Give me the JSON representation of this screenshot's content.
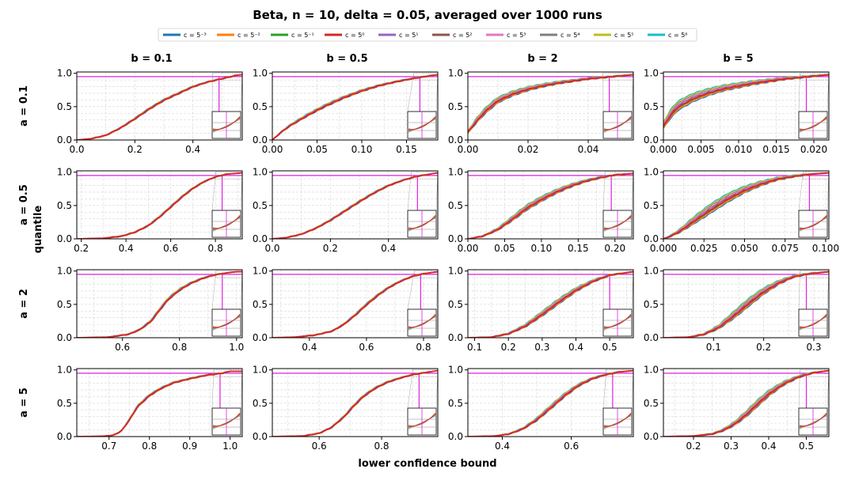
{
  "chart_data": {
    "type": "line",
    "title": "Beta,  n = 10,  delta = 0.05, averaged over 1000 runs",
    "xlabel": "lower confidence bound",
    "ylabel": "quantile",
    "reference_quantile": 0.95,
    "legend": {
      "placement": "top-center",
      "entries": [
        {
          "label": "c = 5⁻³",
          "color": "#1f77b4"
        },
        {
          "label": "c = 5⁻²",
          "color": "#ff7f0e"
        },
        {
          "label": "c = 5⁻¹",
          "color": "#2ca02c"
        },
        {
          "label": "c = 5⁰",
          "color": "#d62728"
        },
        {
          "label": "c = 5¹",
          "color": "#9467bd"
        },
        {
          "label": "c = 5²",
          "color": "#8c564b"
        },
        {
          "label": "c = 5³",
          "color": "#e377c2"
        },
        {
          "label": "c = 5⁴",
          "color": "#7f7f7f"
        },
        {
          "label": "c = 5⁵",
          "color": "#bcbd22"
        },
        {
          "label": "c = 5⁶",
          "color": "#17becf"
        }
      ]
    },
    "columns": [
      {
        "label": "b = 0.1"
      },
      {
        "label": "b = 0.5"
      },
      {
        "label": "b = 2"
      },
      {
        "label": "b = 5"
      }
    ],
    "rows": [
      {
        "label": "a = 0.1"
      },
      {
        "label": "a = 0.5"
      },
      {
        "label": "a = 2"
      },
      {
        "label": "a = 5"
      }
    ],
    "y_ticks": [
      {
        "v": 0.0,
        "label": "0.0"
      },
      {
        "v": 0.5,
        "label": "0.5"
      },
      {
        "v": 1.0,
        "label": "1.0"
      }
    ],
    "panels": [
      {
        "row": 0,
        "col": 0,
        "xlim": [
          0.0,
          0.57
        ],
        "ylim": [
          0,
          1.02
        ],
        "marker_x": 0.49,
        "xticks": [
          {
            "v": 0.0,
            "label": "0.0"
          },
          {
            "v": 0.2,
            "label": "0.2"
          },
          {
            "v": 0.4,
            "label": "0.4"
          }
        ],
        "curve": {
          "x": [
            0.0,
            0.05,
            0.1,
            0.15,
            0.2,
            0.25,
            0.3,
            0.35,
            0.4,
            0.45,
            0.5,
            0.55,
            0.57
          ],
          "y": [
            0,
            0.02,
            0.07,
            0.18,
            0.32,
            0.47,
            0.6,
            0.7,
            0.8,
            0.87,
            0.92,
            0.97,
            0.98
          ]
        },
        "spread": 0.012
      },
      {
        "row": 0,
        "col": 1,
        "xlim": [
          0.0,
          0.185
        ],
        "ylim": [
          0,
          1.02
        ],
        "marker_x": 0.165,
        "xticks": [
          {
            "v": 0.0,
            "label": "0.00"
          },
          {
            "v": 0.05,
            "label": "0.05"
          },
          {
            "v": 0.1,
            "label": "0.10"
          },
          {
            "v": 0.15,
            "label": "0.15"
          }
        ],
        "curve": {
          "x": [
            0.0,
            0.01,
            0.02,
            0.04,
            0.06,
            0.08,
            0.1,
            0.12,
            0.14,
            0.16,
            0.185
          ],
          "y": [
            0,
            0.12,
            0.22,
            0.38,
            0.52,
            0.64,
            0.74,
            0.82,
            0.88,
            0.93,
            0.98
          ]
        },
        "spread": 0.018
      },
      {
        "row": 0,
        "col": 2,
        "xlim": [
          0.0,
          0.055
        ],
        "ylim": [
          0,
          1.02
        ],
        "marker_x": 0.047,
        "xticks": [
          {
            "v": 0.0,
            "label": "0.00"
          },
          {
            "v": 0.02,
            "label": "0.02"
          },
          {
            "v": 0.04,
            "label": "0.04"
          }
        ],
        "curve": {
          "x": [
            0.0,
            0.003,
            0.006,
            0.01,
            0.015,
            0.02,
            0.025,
            0.03,
            0.035,
            0.04,
            0.045,
            0.05,
            0.055
          ],
          "y": [
            0.12,
            0.3,
            0.45,
            0.6,
            0.7,
            0.77,
            0.82,
            0.86,
            0.89,
            0.92,
            0.94,
            0.96,
            0.98
          ]
        },
        "spread": 0.045
      },
      {
        "row": 0,
        "col": 3,
        "xlim": [
          0.0,
          0.022
        ],
        "ylim": [
          0,
          1.02
        ],
        "marker_x": 0.019,
        "xticks": [
          {
            "v": 0.0,
            "label": "0.000"
          },
          {
            "v": 0.005,
            "label": "0.005"
          },
          {
            "v": 0.01,
            "label": "0.010"
          },
          {
            "v": 0.015,
            "label": "0.015"
          },
          {
            "v": 0.02,
            "label": "0.020"
          }
        ],
        "curve": {
          "x": [
            0.0,
            0.001,
            0.002,
            0.004,
            0.006,
            0.008,
            0.01,
            0.012,
            0.014,
            0.016,
            0.018,
            0.02,
            0.022
          ],
          "y": [
            0.22,
            0.4,
            0.52,
            0.64,
            0.72,
            0.78,
            0.82,
            0.86,
            0.89,
            0.92,
            0.94,
            0.96,
            0.98
          ]
        },
        "spread": 0.07
      },
      {
        "row": 1,
        "col": 0,
        "xlim": [
          0.18,
          0.92
        ],
        "ylim": [
          0,
          1.02
        ],
        "marker_x": 0.83,
        "xticks": [
          {
            "v": 0.2,
            "label": "0.2"
          },
          {
            "v": 0.4,
            "label": "0.4"
          },
          {
            "v": 0.6,
            "label": "0.6"
          },
          {
            "v": 0.8,
            "label": "0.8"
          }
        ],
        "curve": {
          "x": [
            0.18,
            0.3,
            0.38,
            0.44,
            0.5,
            0.55,
            0.6,
            0.65,
            0.7,
            0.75,
            0.8,
            0.85,
            0.92
          ],
          "y": [
            0,
            0.01,
            0.04,
            0.1,
            0.2,
            0.33,
            0.48,
            0.63,
            0.76,
            0.86,
            0.93,
            0.97,
            0.99
          ]
        },
        "spread": 0.012
      },
      {
        "row": 1,
        "col": 1,
        "xlim": [
          0.0,
          0.57
        ],
        "ylim": [
          0,
          1.02
        ],
        "marker_x": 0.5,
        "xticks": [
          {
            "v": 0.0,
            "label": "0.0"
          },
          {
            "v": 0.2,
            "label": "0.2"
          },
          {
            "v": 0.4,
            "label": "0.4"
          }
        ],
        "curve": {
          "x": [
            0.0,
            0.05,
            0.1,
            0.15,
            0.2,
            0.25,
            0.3,
            0.35,
            0.4,
            0.45,
            0.5,
            0.57
          ],
          "y": [
            0,
            0.02,
            0.07,
            0.16,
            0.28,
            0.42,
            0.56,
            0.69,
            0.8,
            0.88,
            0.94,
            0.99
          ]
        },
        "spread": 0.012
      },
      {
        "row": 1,
        "col": 2,
        "xlim": [
          0.0,
          0.225
        ],
        "ylim": [
          0,
          1.02
        ],
        "marker_x": 0.195,
        "xticks": [
          {
            "v": 0.0,
            "label": "0.00"
          },
          {
            "v": 0.05,
            "label": "0.05"
          },
          {
            "v": 0.1,
            "label": "0.10"
          },
          {
            "v": 0.15,
            "label": "0.15"
          },
          {
            "v": 0.2,
            "label": "0.20"
          }
        ],
        "curve": {
          "x": [
            0.0,
            0.02,
            0.04,
            0.06,
            0.08,
            0.1,
            0.12,
            0.14,
            0.16,
            0.18,
            0.2,
            0.225
          ],
          "y": [
            0,
            0.04,
            0.14,
            0.3,
            0.47,
            0.6,
            0.71,
            0.8,
            0.87,
            0.92,
            0.96,
            0.98
          ]
        },
        "spread": 0.04
      },
      {
        "row": 1,
        "col": 3,
        "xlim": [
          0.0,
          0.102
        ],
        "ylim": [
          0,
          1.02
        ],
        "marker_x": 0.09,
        "xticks": [
          {
            "v": 0.0,
            "label": "0.000"
          },
          {
            "v": 0.025,
            "label": "0.025"
          },
          {
            "v": 0.05,
            "label": "0.050"
          },
          {
            "v": 0.075,
            "label": "0.075"
          },
          {
            "v": 0.1,
            "label": "0.100"
          }
        ],
        "curve": {
          "x": [
            0.0,
            0.005,
            0.01,
            0.02,
            0.03,
            0.04,
            0.05,
            0.06,
            0.07,
            0.08,
            0.09,
            0.102
          ],
          "y": [
            0,
            0.05,
            0.12,
            0.3,
            0.47,
            0.62,
            0.74,
            0.83,
            0.9,
            0.94,
            0.97,
            0.99
          ]
        },
        "spread": 0.07
      },
      {
        "row": 2,
        "col": 0,
        "xlim": [
          0.44,
          1.02
        ],
        "ylim": [
          0,
          1.02
        ],
        "marker_x": 0.95,
        "xticks": [
          {
            "v": 0.6,
            "label": "0.6"
          },
          {
            "v": 0.8,
            "label": "0.8"
          },
          {
            "v": 1.0,
            "label": "1.0"
          }
        ],
        "curve": {
          "x": [
            0.44,
            0.55,
            0.62,
            0.66,
            0.7,
            0.73,
            0.76,
            0.8,
            0.84,
            0.88,
            0.92,
            0.96,
            1.0
          ],
          "y": [
            0,
            0.01,
            0.05,
            0.12,
            0.25,
            0.42,
            0.58,
            0.72,
            0.82,
            0.89,
            0.94,
            0.97,
            0.99
          ]
        },
        "spread": 0.02
      },
      {
        "row": 2,
        "col": 1,
        "xlim": [
          0.27,
          0.85
        ],
        "ylim": [
          0,
          1.02
        ],
        "marker_x": 0.79,
        "xticks": [
          {
            "v": 0.4,
            "label": "0.4"
          },
          {
            "v": 0.6,
            "label": "0.6"
          },
          {
            "v": 0.8,
            "label": "0.8"
          }
        ],
        "curve": {
          "x": [
            0.27,
            0.35,
            0.42,
            0.48,
            0.52,
            0.56,
            0.6,
            0.64,
            0.68,
            0.72,
            0.76,
            0.8,
            0.85
          ],
          "y": [
            0,
            0.01,
            0.04,
            0.1,
            0.2,
            0.34,
            0.5,
            0.64,
            0.76,
            0.85,
            0.92,
            0.96,
            0.99
          ]
        },
        "spread": 0.015
      },
      {
        "row": 2,
        "col": 2,
        "xlim": [
          0.08,
          0.57
        ],
        "ylim": [
          0,
          1.02
        ],
        "marker_x": 0.5,
        "xticks": [
          {
            "v": 0.1,
            "label": "0.1"
          },
          {
            "v": 0.2,
            "label": "0.2"
          },
          {
            "v": 0.3,
            "label": "0.3"
          },
          {
            "v": 0.4,
            "label": "0.4"
          },
          {
            "v": 0.5,
            "label": "0.5"
          }
        ],
        "curve": {
          "x": [
            0.08,
            0.15,
            0.2,
            0.25,
            0.3,
            0.35,
            0.4,
            0.45,
            0.5,
            0.57
          ],
          "y": [
            0,
            0.01,
            0.06,
            0.18,
            0.36,
            0.55,
            0.72,
            0.85,
            0.94,
            0.99
          ]
        },
        "spread": 0.04
      },
      {
        "row": 2,
        "col": 3,
        "xlim": [
          0.0,
          0.33
        ],
        "ylim": [
          0,
          1.02
        ],
        "marker_x": 0.285,
        "xticks": [
          {
            "v": 0.1,
            "label": "0.1"
          },
          {
            "v": 0.2,
            "label": "0.2"
          },
          {
            "v": 0.3,
            "label": "0.3"
          }
        ],
        "curve": {
          "x": [
            0.0,
            0.05,
            0.08,
            0.11,
            0.14,
            0.17,
            0.2,
            0.23,
            0.26,
            0.29,
            0.33
          ],
          "y": [
            0,
            0.01,
            0.05,
            0.16,
            0.34,
            0.53,
            0.7,
            0.83,
            0.92,
            0.96,
            0.99
          ]
        },
        "spread": 0.06
      },
      {
        "row": 3,
        "col": 0,
        "xlim": [
          0.62,
          1.03
        ],
        "ylim": [
          0,
          1.02
        ],
        "marker_x": 0.975,
        "xticks": [
          {
            "v": 0.7,
            "label": "0.7"
          },
          {
            "v": 0.8,
            "label": "0.8"
          },
          {
            "v": 0.9,
            "label": "0.9"
          },
          {
            "v": 1.0,
            "label": "1.0"
          }
        ],
        "curve": {
          "x": [
            0.62,
            0.68,
            0.71,
            0.73,
            0.75,
            0.77,
            0.8,
            0.83,
            0.86,
            0.9,
            0.94,
            0.98,
            1.0
          ],
          "y": [
            0,
            0.005,
            0.02,
            0.08,
            0.25,
            0.45,
            0.62,
            0.73,
            0.81,
            0.87,
            0.92,
            0.95,
            0.98
          ]
        },
        "spread": 0.015
      },
      {
        "row": 3,
        "col": 1,
        "xlim": [
          0.45,
          0.98
        ],
        "ylim": [
          0,
          1.02
        ],
        "marker_x": 0.92,
        "xticks": [
          {
            "v": 0.6,
            "label": "0.6"
          },
          {
            "v": 0.8,
            "label": "0.8"
          }
        ],
        "curve": {
          "x": [
            0.45,
            0.55,
            0.6,
            0.64,
            0.68,
            0.71,
            0.74,
            0.78,
            0.82,
            0.86,
            0.9,
            0.98
          ],
          "y": [
            0,
            0.01,
            0.05,
            0.14,
            0.3,
            0.46,
            0.6,
            0.73,
            0.82,
            0.88,
            0.93,
            0.99
          ]
        },
        "spread": 0.015
      },
      {
        "row": 3,
        "col": 2,
        "xlim": [
          0.3,
          0.78
        ],
        "ylim": [
          0,
          1.02
        ],
        "marker_x": 0.72,
        "xticks": [
          {
            "v": 0.4,
            "label": "0.4"
          },
          {
            "v": 0.6,
            "label": "0.6"
          }
        ],
        "curve": {
          "x": [
            0.3,
            0.38,
            0.42,
            0.46,
            0.5,
            0.54,
            0.58,
            0.62,
            0.66,
            0.7,
            0.74,
            0.78
          ],
          "y": [
            0,
            0.01,
            0.04,
            0.12,
            0.26,
            0.44,
            0.62,
            0.77,
            0.87,
            0.93,
            0.97,
            0.99
          ]
        },
        "spread": 0.03
      },
      {
        "row": 3,
        "col": 3,
        "xlim": [
          0.12,
          0.56
        ],
        "ylim": [
          0,
          1.02
        ],
        "marker_x": 0.5,
        "xticks": [
          {
            "v": 0.2,
            "label": "0.2"
          },
          {
            "v": 0.3,
            "label": "0.3"
          },
          {
            "v": 0.4,
            "label": "0.4"
          },
          {
            "v": 0.5,
            "label": "0.5"
          }
        ],
        "curve": {
          "x": [
            0.12,
            0.2,
            0.25,
            0.28,
            0.31,
            0.34,
            0.37,
            0.4,
            0.44,
            0.48,
            0.52,
            0.56
          ],
          "y": [
            0,
            0.01,
            0.04,
            0.1,
            0.2,
            0.34,
            0.5,
            0.65,
            0.8,
            0.9,
            0.96,
            0.99
          ]
        },
        "spread": 0.05
      }
    ]
  }
}
